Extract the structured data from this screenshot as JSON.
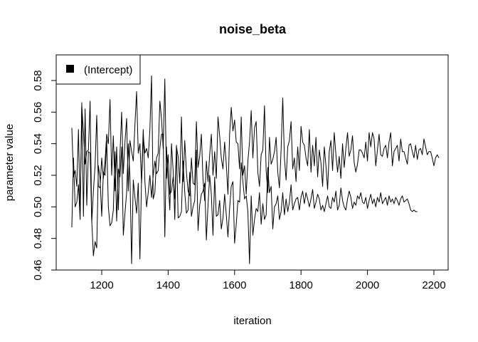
{
  "chart_data": {
    "type": "line",
    "title": "noise_beta",
    "xlabel": "iteration",
    "ylabel": "parameter value",
    "xlim": [
      1100,
      2200
    ],
    "ylim": [
      0.46,
      0.58
    ],
    "x_ticks": [
      "1200",
      "1400",
      "1600",
      "1800",
      "2000",
      "2200"
    ],
    "y_ticks": [
      "0.46",
      "0.48",
      "0.50",
      "0.52",
      "0.54",
      "0.56",
      "0.58"
    ],
    "x_start": 1110,
    "x_step": 5,
    "grid": false,
    "legend": {
      "position": "top-left",
      "entries": [
        "(Intercept)"
      ]
    },
    "line_color": "#000000",
    "series": [
      {
        "name": "",
        "values": [
          0.55,
          0.519,
          0.523,
          0.513,
          0.549,
          0.497,
          0.564,
          0.548,
          0.527,
          0.535,
          0.536,
          0.567,
          0.49,
          0.51,
          0.526,
          0.558,
          0.513,
          0.512,
          0.531,
          0.518,
          0.529,
          0.546,
          0.54,
          0.568,
          0.52,
          0.545,
          0.51,
          0.538,
          0.498,
          0.534,
          0.56,
          0.521,
          0.541,
          0.556,
          0.51,
          0.542,
          0.535,
          0.529,
          0.552,
          0.573,
          0.534,
          0.54,
          0.515,
          0.545,
          0.534,
          0.537,
          0.531,
          0.549,
          0.583,
          0.505,
          0.509,
          0.531,
          0.534,
          0.567,
          0.556,
          0.537,
          0.581,
          0.518,
          0.533,
          0.508,
          0.51,
          0.519,
          0.505,
          0.538,
          0.532,
          0.515,
          0.557,
          0.516,
          0.542,
          0.522,
          0.51,
          0.507,
          0.531,
          0.515,
          0.514,
          0.554,
          0.525,
          0.532,
          0.546,
          0.517,
          0.504,
          0.529,
          0.516,
          0.533,
          0.546,
          0.52,
          0.535,
          0.518,
          0.557,
          0.545,
          0.531,
          0.524,
          0.541,
          0.527,
          0.508,
          0.546,
          0.563,
          0.548,
          0.555,
          0.541,
          0.54,
          0.524,
          0.557,
          0.52,
          0.526,
          0.508,
          0.529,
          0.541,
          0.561,
          0.531,
          0.55,
          0.554,
          0.522,
          0.513,
          0.533,
          0.536,
          0.564,
          0.523,
          0.509,
          0.544,
          0.527,
          0.53,
          0.535,
          0.544,
          0.522,
          0.512,
          0.536,
          0.569,
          0.531,
          0.517,
          0.538,
          0.542,
          0.554,
          0.524,
          0.531,
          0.516,
          0.538,
          0.523,
          0.551,
          0.541,
          0.539,
          0.531,
          0.526,
          0.549,
          0.522,
          0.539,
          0.526,
          0.544,
          0.519,
          0.536,
          0.528,
          0.513,
          0.538,
          0.526,
          0.511,
          0.535,
          0.542,
          0.523,
          0.547,
          0.533,
          0.522,
          0.532,
          0.518,
          0.54,
          0.525,
          0.537,
          0.547,
          0.532,
          0.536,
          0.545,
          0.528,
          0.522,
          0.527,
          0.536,
          0.536,
          0.534,
          0.531,
          0.541,
          0.529,
          0.547,
          0.538,
          0.547,
          0.543,
          0.526,
          0.536,
          0.546,
          0.533,
          0.532,
          0.537,
          0.539,
          0.531,
          0.541,
          0.547,
          0.526,
          0.535,
          0.537,
          0.539,
          0.529,
          0.543,
          0.535,
          0.535,
          0.531,
          0.527,
          0.539,
          0.54,
          0.535,
          0.531,
          0.539,
          0.53,
          0.536,
          0.537,
          0.533,
          0.543,
          0.538,
          0.533,
          0.535,
          0.535,
          0.531,
          0.526,
          0.531,
          0.533,
          0.531
        ]
      },
      {
        "name": "",
        "values": [
          0.487,
          0.531,
          0.5,
          0.503,
          0.514,
          0.492,
          0.566,
          0.494,
          0.562,
          0.501,
          0.535,
          0.534,
          0.491,
          0.469,
          0.478,
          0.474,
          0.526,
          0.518,
          0.494,
          0.522,
          0.52,
          0.542,
          0.5,
          0.488,
          0.49,
          0.498,
          0.535,
          0.491,
          0.524,
          0.519,
          0.538,
          0.482,
          0.496,
          0.509,
          0.54,
          0.519,
          0.464,
          0.517,
          0.506,
          0.496,
          0.515,
          0.467,
          0.518,
          0.549,
          0.516,
          0.5,
          0.509,
          0.52,
          0.506,
          0.52,
          0.529,
          0.521,
          0.523,
          0.537,
          0.546,
          0.546,
          0.481,
          0.538,
          0.516,
          0.498,
          0.54,
          0.523,
          0.492,
          0.539,
          0.493,
          0.494,
          0.497,
          0.529,
          0.509,
          0.496,
          0.498,
          0.522,
          0.494,
          0.5,
          0.504,
          0.536,
          0.485,
          0.501,
          0.508,
          0.51,
          0.515,
          0.479,
          0.501,
          0.52,
          0.508,
          0.482,
          0.519,
          0.494,
          0.495,
          0.504,
          0.486,
          0.493,
          0.508,
          0.495,
          0.481,
          0.499,
          0.513,
          0.516,
          0.477,
          0.489,
          0.504,
          0.503,
          0.528,
          0.516,
          0.505,
          0.507,
          0.497,
          0.464,
          0.507,
          0.482,
          0.492,
          0.499,
          0.497,
          0.509,
          0.489,
          0.502,
          0.492,
          0.495,
          0.525,
          0.509,
          0.513,
          0.486,
          0.5,
          0.502,
          0.507,
          0.492,
          0.497,
          0.509,
          0.495,
          0.505,
          0.497,
          0.503,
          0.514,
          0.498,
          0.502,
          0.505,
          0.506,
          0.498,
          0.506,
          0.51,
          0.502,
          0.509,
          0.505,
          0.5,
          0.505,
          0.511,
          0.499,
          0.503,
          0.508,
          0.505,
          0.498,
          0.501,
          0.497,
          0.502,
          0.507,
          0.5,
          0.499,
          0.506,
          0.503,
          0.51,
          0.498,
          0.501,
          0.512,
          0.504,
          0.5,
          0.498,
          0.505,
          0.51,
          0.506,
          0.499,
          0.503,
          0.501,
          0.507,
          0.505,
          0.509,
          0.503,
          0.502,
          0.506,
          0.499,
          0.504,
          0.508,
          0.502,
          0.505,
          0.5,
          0.506,
          0.503,
          0.509,
          0.502,
          0.504,
          0.506,
          0.501,
          0.507,
          0.503,
          0.505,
          0.502,
          0.506,
          0.504,
          0.501,
          0.505,
          0.507,
          0.503,
          0.504,
          0.505,
          0.502,
          0.498,
          0.497,
          0.498,
          0.497,
          0.497
        ]
      }
    ]
  }
}
